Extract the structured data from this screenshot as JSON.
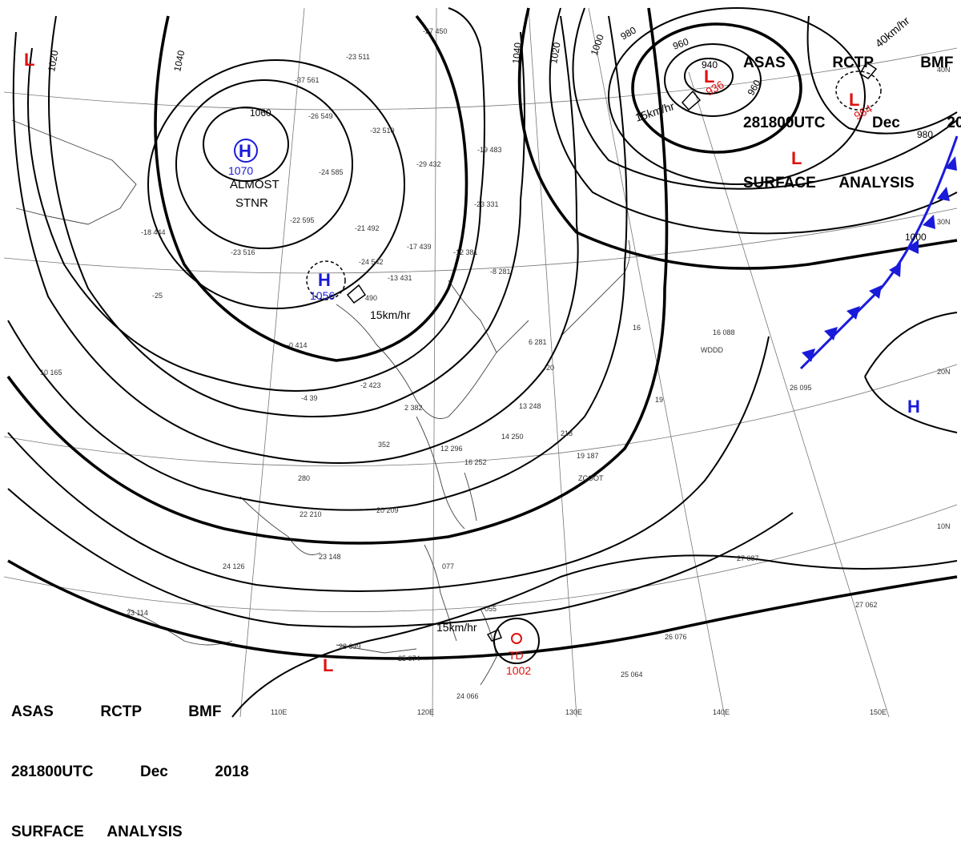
{
  "header": {
    "line1": "ASAS  RCTP  BMF",
    "line2": "281800UTC  Dec  2018",
    "line3": "SURFACE ANALYSIS"
  },
  "colors": {
    "high_center": "#1a1adb",
    "low_center": "#e01010",
    "cold_front": "#1a1adb",
    "isobar": "#000000"
  },
  "isobar_labels": [
    "1020",
    "1040",
    "1060",
    "1040",
    "1020",
    "1000",
    "980",
    "960",
    "940",
    "960",
    "980",
    "1000"
  ],
  "centers": [
    {
      "type": "H",
      "value": "1070",
      "note1": "ALMOST",
      "note2": "STNR"
    },
    {
      "type": "H",
      "value": "1056",
      "motion": "15km/hr"
    },
    {
      "type": "L",
      "value": "936",
      "motion": "15km/hr",
      "pressure_label": "940"
    },
    {
      "type": "L",
      "value": "964",
      "motion": "40km/hr"
    },
    {
      "type": "L",
      "value": ""
    },
    {
      "type": "L",
      "value": ""
    },
    {
      "type": "L",
      "value": ""
    },
    {
      "type": "H",
      "value": ""
    },
    {
      "type": "TD",
      "value": "1002",
      "motion": "15km/hr"
    }
  ],
  "lon_labels": [
    "110E",
    "120E",
    "130E",
    "140E",
    "150E"
  ],
  "lat_labels": [
    "40N",
    "30N",
    "20N",
    "10N"
  ],
  "stations": [
    "-27 450",
    "-23 511",
    "-37 561",
    "-26 549",
    "-32 510",
    "-29 432",
    "-24 585",
    "-19 483",
    "-22 595",
    "-21 492",
    "-23 331",
    "-17 439",
    "-12 381",
    "-18 444",
    "-23 516",
    "-24 542",
    "-13 431",
    "-8 281",
    "-25",
    "490",
    "-0 414",
    "-2 423",
    "-4 39",
    "2 382",
    "10 165",
    "352",
    "280",
    "12 296",
    "16 252",
    "14 250",
    "13 248",
    "6 281",
    "20 209",
    "22 210",
    "24 126",
    "23 148",
    "28 099",
    "25 074",
    "24 066",
    "077",
    "055",
    "19 187",
    "218",
    "26 095",
    "27 087",
    "27 062",
    "26 076",
    "25 064",
    "23 114",
    "16 088",
    "20",
    "16",
    "19"
  ],
  "station_remarks": [
    "WDDD",
    "ZCOOT"
  ]
}
